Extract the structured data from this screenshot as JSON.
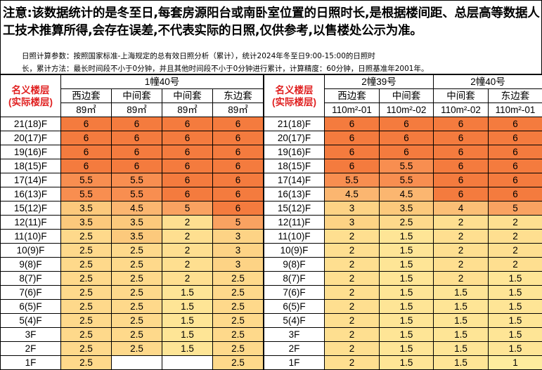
{
  "notice": {
    "main": "注意:该数据统计的是冬至日,每套房源阳台或南卧室位置的日照时长,是根据楼间距、总层高等数据人工技术推算所得,会存在误差,不代表实际的日照,仅供参考,以售楼处公示为准。",
    "params_line1": "日照计算参数：按照国家标准-上海规定的总有效日照分析（累计），统计2024年冬至日9:00-15:00的日照时",
    "params_line2": "长，累计方法：最长时间段不小于0分钟，并且其他时间段不小于0分钟进行累计，计算精度：60分钟，日照基准年2001年。"
  },
  "header_label_line1": "名义楼层",
  "header_label_line2": "(实际楼层)",
  "floors": [
    "21(18)F",
    "20(17)F",
    "19(16)F",
    "18(15)F",
    "17(14)F",
    "16(13)F",
    "15(12)F",
    "12(11)F",
    "11(10)F",
    "10(9)F",
    "9(8)F",
    "8(7)F",
    "7(6)F",
    "6(5)F",
    "5(4)F",
    "3F",
    "2F",
    "1F"
  ],
  "left": {
    "building": "1幢40号",
    "units": [
      {
        "name": "西边套",
        "area": "89㎡",
        "values": [
          "6",
          "6",
          "6",
          "6",
          "5.5",
          "5.5",
          "3.5",
          "3.5",
          "2.5",
          "2.5",
          "2.5",
          "2.5",
          "2.5",
          "2.5",
          "2.5",
          "2.5",
          "2.5",
          "2.5"
        ]
      },
      {
        "name": "中间套",
        "area": "89㎡",
        "values": [
          "6",
          "6",
          "6",
          "6",
          "5.5",
          "5.5",
          "4.5",
          "3.5",
          "3.5",
          "2.5",
          "2.5",
          "2.5",
          "2.5",
          "2.5",
          "2.5",
          "2.5",
          "2.5",
          ""
        ]
      },
      {
        "name": "中间套",
        "area": "89㎡",
        "values": [
          "6",
          "6",
          "6",
          "6",
          "6",
          "6",
          "5",
          "2",
          "2",
          "2",
          "2",
          "2",
          "1.5",
          "1.5",
          "1.5",
          "1.5",
          "1.5",
          ""
        ]
      },
      {
        "name": "东边套",
        "area": "89㎡",
        "values": [
          "6",
          "6",
          "6",
          "6",
          "6",
          "6",
          "6",
          "5",
          "3",
          "3",
          "3",
          "2.5",
          "2.5",
          "2.5",
          "2.5",
          "2.5",
          "2.5",
          "2.5"
        ]
      }
    ]
  },
  "right": {
    "buildings": [
      {
        "name": "2幢39号",
        "span": 2
      },
      {
        "name": "2幢40号",
        "span": 2
      }
    ],
    "units": [
      {
        "name": "西边套",
        "area": "110m²-01",
        "values": [
          "6",
          "6",
          "6",
          "6",
          "5.5",
          "4.5",
          "3",
          "3",
          "2",
          "2",
          "2",
          "2",
          "2",
          "2",
          "2",
          "2",
          "2",
          "2"
        ]
      },
      {
        "name": "中间套",
        "area": "110m²-02",
        "values": [
          "6",
          "6",
          "6",
          "5.5",
          "5.5",
          "4.5",
          "3.5",
          "2.5",
          "1.5",
          "1.5",
          "1.5",
          "1.5",
          "1.5",
          "1.5",
          "1.5",
          "1.5",
          "1.5",
          "1.5"
        ]
      },
      {
        "name": "中间套",
        "area": "110m²-02",
        "values": [
          "6",
          "6",
          "6",
          "6",
          "6",
          "6",
          "4",
          "2",
          "2",
          "2",
          "2",
          "2",
          "1.5",
          "1.5",
          "1.5",
          "1.5",
          "1.5",
          "1.5"
        ]
      },
      {
        "name": "东边套",
        "area": "110m²-01",
        "values": [
          "6",
          "6",
          "6",
          "6",
          "6",
          "6",
          "5",
          "2",
          "2",
          "2",
          "2",
          "1.5",
          "1.5",
          "1.5",
          "1.5",
          "1.5",
          "1.5",
          "1"
        ]
      }
    ]
  }
}
